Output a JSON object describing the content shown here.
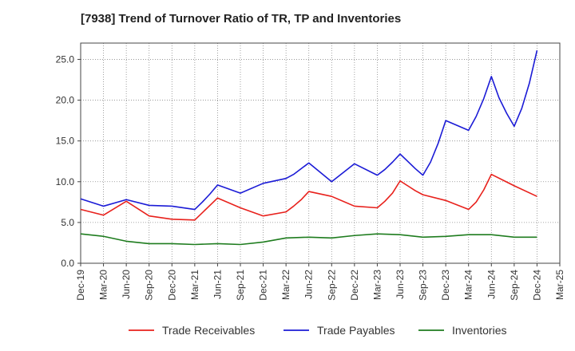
{
  "chart_data": {
    "type": "line",
    "title": "[7938]  Trend of Turnover Ratio of TR, TP and Inventories",
    "xlabel": "",
    "ylabel": "",
    "ylim": [
      0,
      27
    ],
    "yticks": [
      "0.0",
      "5.0",
      "10.0",
      "15.0",
      "20.0",
      "25.0"
    ],
    "ytick_values": [
      0,
      5,
      10,
      15,
      20,
      25
    ],
    "categories": [
      "Dec-19",
      "Mar-20",
      "Jun-20",
      "Sep-20",
      "Dec-20",
      "Mar-21",
      "Jun-21",
      "Sep-21",
      "Dec-21",
      "Mar-22",
      "Jun-22",
      "Sep-22",
      "Dec-22",
      "Mar-23",
      "Jun-23",
      "Sep-23",
      "Dec-23",
      "Mar-24",
      "Jun-24",
      "Sep-24",
      "Dec-24",
      "Mar-25"
    ],
    "grid": true,
    "legend_position": "bottom",
    "series": [
      {
        "name": "Trade Receivables",
        "color": "#e8211c",
        "x": [
          0,
          1,
          2,
          3,
          4,
          5,
          6,
          7,
          8,
          9,
          9.333,
          9.667,
          10,
          11,
          12,
          13,
          13.333,
          13.667,
          14,
          14.333,
          14.667,
          15,
          16,
          17,
          17.333,
          17.667,
          18,
          19,
          20
        ],
        "values": [
          6.6,
          5.9,
          7.6,
          5.8,
          5.4,
          5.3,
          8.0,
          6.8,
          5.8,
          6.3,
          7.0,
          7.8,
          8.8,
          8.2,
          7.0,
          6.8,
          7.6,
          8.6,
          10.1,
          9.5,
          8.9,
          8.4,
          7.7,
          6.6,
          7.5,
          9.0,
          10.9,
          9.5,
          8.2
        ]
      },
      {
        "name": "Trade Payables",
        "color": "#1b1bd6",
        "x": [
          0,
          1,
          2,
          3,
          4,
          5,
          5.333,
          5.667,
          6,
          7,
          8,
          9,
          9.333,
          9.667,
          10,
          11,
          12,
          13,
          13.333,
          13.667,
          14,
          14.333,
          14.667,
          15,
          15.333,
          15.667,
          16,
          17,
          17.333,
          17.667,
          18,
          18.333,
          18.667,
          19,
          19.333,
          19.667,
          20
        ],
        "values": [
          7.9,
          7.0,
          7.8,
          7.1,
          7.0,
          6.6,
          7.5,
          8.5,
          9.6,
          8.6,
          9.8,
          10.4,
          10.9,
          11.6,
          12.3,
          10.0,
          12.2,
          10.8,
          11.5,
          12.4,
          13.4,
          12.5,
          11.6,
          10.8,
          12.4,
          14.7,
          17.5,
          16.3,
          18.0,
          20.2,
          22.9,
          20.3,
          18.4,
          16.8,
          19.0,
          22.1,
          26.1
        ]
      },
      {
        "name": "Inventories",
        "color": "#1e7c1e",
        "x": [
          0,
          1,
          2,
          3,
          4,
          5,
          6,
          7,
          8,
          9,
          10,
          11,
          12,
          13,
          14,
          15,
          16,
          17,
          18,
          19,
          20
        ],
        "values": [
          3.6,
          3.3,
          2.7,
          2.4,
          2.4,
          2.3,
          2.4,
          2.3,
          2.6,
          3.1,
          3.2,
          3.1,
          3.4,
          3.6,
          3.5,
          3.2,
          3.3,
          3.5,
          3.5,
          3.2,
          3.2
        ]
      }
    ]
  }
}
